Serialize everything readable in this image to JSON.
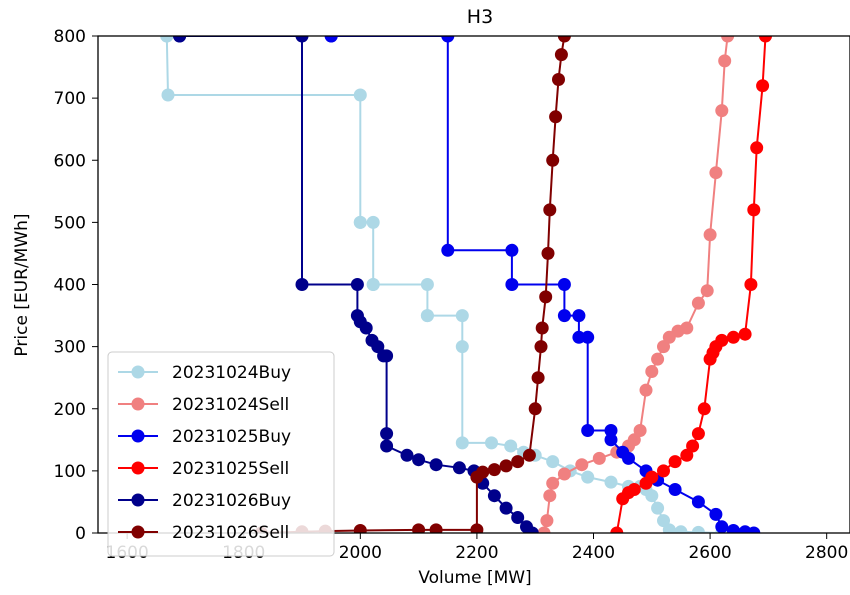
{
  "chart_data": {
    "type": "line",
    "title": "H3",
    "xlabel": "Volume [MW]",
    "ylabel": "Price [EUR/MWh]",
    "xlim": [
      1550,
      2840
    ],
    "ylim": [
      0,
      800
    ],
    "xticks": [
      1600,
      1800,
      2000,
      2200,
      2400,
      2600,
      2800
    ],
    "yticks": [
      0,
      100,
      200,
      300,
      400,
      500,
      600,
      700,
      800
    ],
    "grid": false,
    "legend_position": "lower-left",
    "series": [
      {
        "name": "20231024Buy",
        "color": "#add8e6",
        "x": [
          1668,
          1668,
          1670,
          2000,
          2000,
          2000,
          2022,
          2022,
          2022,
          2115,
          2115,
          2115,
          2175,
          2175,
          2175,
          2225,
          2258,
          2280,
          2300,
          2330,
          2360,
          2390,
          2430,
          2460,
          2480,
          2490,
          2500,
          2510,
          2520,
          2530,
          2550,
          2580,
          2620
        ],
        "y": [
          800,
          800,
          705,
          705,
          500,
          500,
          500,
          400,
          400,
          400,
          350,
          350,
          350,
          300,
          145,
          145,
          140,
          130,
          125,
          115,
          100,
          90,
          82,
          75,
          75,
          70,
          60,
          40,
          20,
          5,
          2,
          1,
          0
        ]
      },
      {
        "name": "20231024Sell",
        "color": "#f08080",
        "x": [
          2315,
          2320,
          2325,
          2330,
          2350,
          2380,
          2410,
          2440,
          2460,
          2470,
          2480,
          2490,
          2500,
          2510,
          2520,
          2530,
          2545,
          2560,
          2580,
          2595,
          2600,
          2610,
          2620,
          2625,
          2630
        ],
        "y": [
          0,
          20,
          60,
          80,
          95,
          110,
          120,
          130,
          140,
          150,
          165,
          230,
          260,
          280,
          300,
          315,
          325,
          330,
          370,
          390,
          480,
          580,
          680,
          760,
          800
        ]
      },
      {
        "name": "20231025Buy",
        "color": "#0000ee",
        "x": [
          1950,
          1950,
          2150,
          2150,
          2260,
          2260,
          2350,
          2350,
          2375,
          2375,
          2390,
          2390,
          2430,
          2430,
          2450,
          2460,
          2490,
          2510,
          2540,
          2580,
          2610,
          2620,
          2640,
          2660,
          2675
        ],
        "y": [
          800,
          800,
          800,
          455,
          455,
          400,
          400,
          350,
          350,
          315,
          315,
          165,
          165,
          150,
          130,
          120,
          100,
          85,
          70,
          50,
          30,
          10,
          4,
          2,
          0
        ]
      },
      {
        "name": "20231025Sell",
        "color": "#ff0000",
        "x": [
          2440,
          2450,
          2460,
          2470,
          2490,
          2500,
          2520,
          2540,
          2560,
          2570,
          2580,
          2590,
          2600,
          2605,
          2610,
          2620,
          2640,
          2660,
          2670,
          2675,
          2680,
          2690,
          2695
        ],
        "y": [
          0,
          55,
          65,
          70,
          80,
          90,
          100,
          115,
          125,
          140,
          160,
          200,
          280,
          290,
          300,
          310,
          315,
          320,
          400,
          520,
          620,
          720,
          800
        ]
      },
      {
        "name": "20231026Buy",
        "color": "#00008b",
        "x": [
          1690,
          1690,
          1900,
          1900,
          1995,
          1995,
          2000,
          2010,
          2020,
          2030,
          2040,
          2045,
          2045,
          2045,
          2080,
          2100,
          2130,
          2170,
          2195,
          2210,
          2230,
          2250,
          2270,
          2285,
          2295
        ],
        "y": [
          800,
          800,
          800,
          400,
          400,
          350,
          340,
          330,
          310,
          300,
          285,
          285,
          160,
          140,
          125,
          118,
          110,
          105,
          100,
          80,
          60,
          40,
          25,
          10,
          0
        ]
      },
      {
        "name": "20231026Sell",
        "color": "#800000",
        "x": [
          1830,
          1900,
          1940,
          2000,
          2100,
          2130,
          2200,
          2200,
          2210,
          2230,
          2250,
          2270,
          2290,
          2300,
          2305,
          2310,
          2312,
          2318,
          2322,
          2325,
          2330,
          2335,
          2340,
          2345,
          2350
        ],
        "y": [
          0,
          2,
          3,
          4,
          5,
          5,
          5,
          90,
          98,
          102,
          108,
          115,
          125,
          200,
          250,
          300,
          330,
          380,
          450,
          520,
          600,
          670,
          730,
          770,
          800
        ]
      }
    ]
  }
}
